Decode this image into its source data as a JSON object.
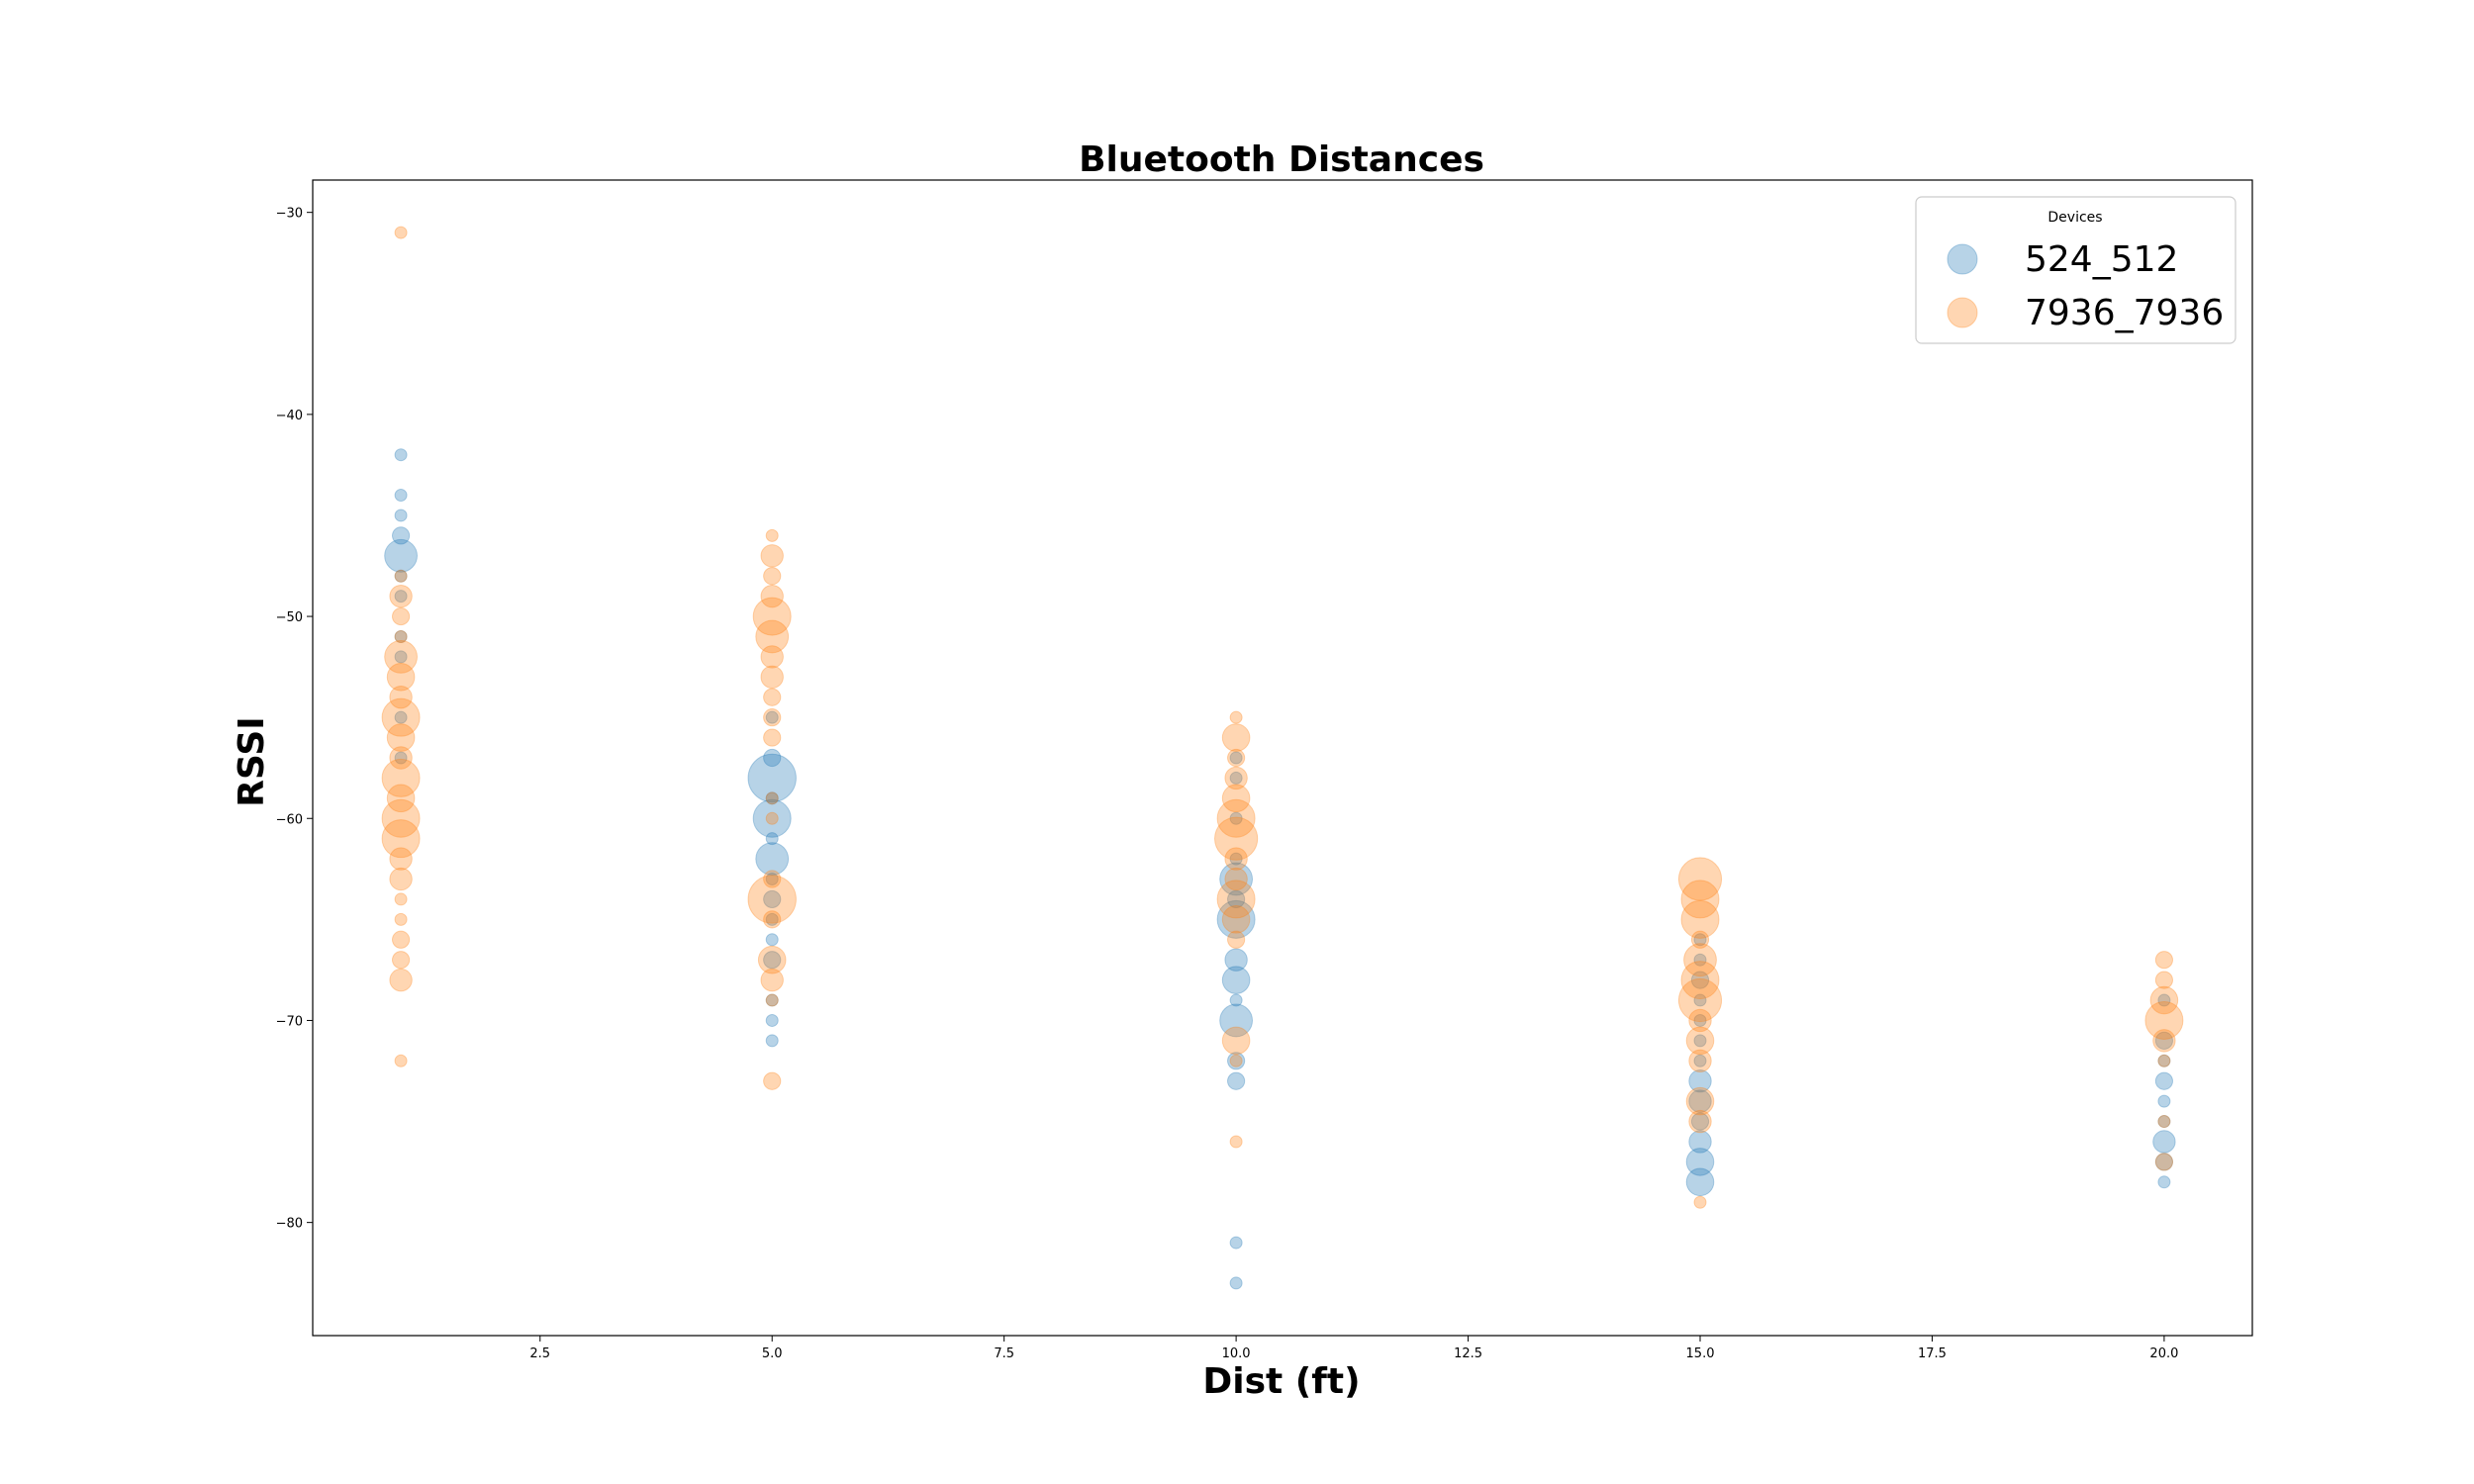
{
  "chart_data": {
    "type": "scatter",
    "title": "Bluetooth Distances",
    "xlabel": "Dist (ft)",
    "ylabel": "RSSI",
    "xlim": [
      0.05,
      20.95
    ],
    "ylim": [
      -85.6,
      -28.4
    ],
    "xticks": [
      2.5,
      5.0,
      7.5,
      10.0,
      12.5,
      15.0,
      17.5,
      20.0
    ],
    "xtick_labels": [
      "2.5",
      "5.0",
      "7.5",
      "10.0",
      "12.5",
      "15.0",
      "17.5",
      "20.0"
    ],
    "yticks": [
      -30,
      -40,
      -50,
      -60,
      -70,
      -80
    ],
    "ytick_labels": [
      "−30",
      "−40",
      "−50",
      "−60",
      "−70",
      "−80"
    ],
    "grid": false,
    "legend": {
      "title": "Devices",
      "placement": "top-right"
    },
    "series": [
      {
        "name": "524_512",
        "color": "#1f77b4",
        "points": [
          {
            "x": 1,
            "y": -42,
            "s": 1
          },
          {
            "x": 1,
            "y": -44,
            "s": 1
          },
          {
            "x": 1,
            "y": -45,
            "s": 1
          },
          {
            "x": 1,
            "y": -46,
            "s": 2
          },
          {
            "x": 1,
            "y": -47,
            "s": 5
          },
          {
            "x": 1,
            "y": -48,
            "s": 1
          },
          {
            "x": 1,
            "y": -49,
            "s": 1
          },
          {
            "x": 1,
            "y": -51,
            "s": 1
          },
          {
            "x": 1,
            "y": -52,
            "s": 1
          },
          {
            "x": 1,
            "y": -55,
            "s": 1
          },
          {
            "x": 1,
            "y": -57,
            "s": 1
          },
          {
            "x": 5,
            "y": -55,
            "s": 1
          },
          {
            "x": 5,
            "y": -57,
            "s": 2
          },
          {
            "x": 5,
            "y": -58,
            "s": 8
          },
          {
            "x": 5,
            "y": -59,
            "s": 1
          },
          {
            "x": 5,
            "y": -60,
            "s": 6
          },
          {
            "x": 5,
            "y": -61,
            "s": 1
          },
          {
            "x": 5,
            "y": -62,
            "s": 5
          },
          {
            "x": 5,
            "y": -63,
            "s": 1
          },
          {
            "x": 5,
            "y": -64,
            "s": 2
          },
          {
            "x": 5,
            "y": -65,
            "s": 1
          },
          {
            "x": 5,
            "y": -66,
            "s": 1
          },
          {
            "x": 5,
            "y": -67,
            "s": 2
          },
          {
            "x": 5,
            "y": -69,
            "s": 1
          },
          {
            "x": 5,
            "y": -70,
            "s": 1
          },
          {
            "x": 5,
            "y": -71,
            "s": 1
          },
          {
            "x": 10,
            "y": -57,
            "s": 1
          },
          {
            "x": 10,
            "y": -58,
            "s": 1
          },
          {
            "x": 10,
            "y": -60,
            "s": 1
          },
          {
            "x": 10,
            "y": -62,
            "s": 1
          },
          {
            "x": 10,
            "y": -63,
            "s": 5
          },
          {
            "x": 10,
            "y": -64,
            "s": 2
          },
          {
            "x": 10,
            "y": -65,
            "s": 6
          },
          {
            "x": 10,
            "y": -67,
            "s": 3
          },
          {
            "x": 10,
            "y": -68,
            "s": 4
          },
          {
            "x": 10,
            "y": -69,
            "s": 1
          },
          {
            "x": 10,
            "y": -70,
            "s": 5
          },
          {
            "x": 10,
            "y": -72,
            "s": 2
          },
          {
            "x": 10,
            "y": -73,
            "s": 2
          },
          {
            "x": 10,
            "y": -81,
            "s": 1
          },
          {
            "x": 10,
            "y": -83,
            "s": 1
          },
          {
            "x": 15,
            "y": -66,
            "s": 1
          },
          {
            "x": 15,
            "y": -67,
            "s": 1
          },
          {
            "x": 15,
            "y": -68,
            "s": 2
          },
          {
            "x": 15,
            "y": -69,
            "s": 1
          },
          {
            "x": 15,
            "y": -70,
            "s": 1
          },
          {
            "x": 15,
            "y": -71,
            "s": 1
          },
          {
            "x": 15,
            "y": -72,
            "s": 1
          },
          {
            "x": 15,
            "y": -73,
            "s": 3
          },
          {
            "x": 15,
            "y": -74,
            "s": 3
          },
          {
            "x": 15,
            "y": -75,
            "s": 2
          },
          {
            "x": 15,
            "y": -76,
            "s": 3
          },
          {
            "x": 15,
            "y": -77,
            "s": 4
          },
          {
            "x": 15,
            "y": -78,
            "s": 4
          },
          {
            "x": 20,
            "y": -69,
            "s": 1
          },
          {
            "x": 20,
            "y": -71,
            "s": 2
          },
          {
            "x": 20,
            "y": -72,
            "s": 1
          },
          {
            "x": 20,
            "y": -73,
            "s": 2
          },
          {
            "x": 20,
            "y": -74,
            "s": 1
          },
          {
            "x": 20,
            "y": -75,
            "s": 1
          },
          {
            "x": 20,
            "y": -76,
            "s": 3
          },
          {
            "x": 20,
            "y": -77,
            "s": 2
          },
          {
            "x": 20,
            "y": -78,
            "s": 1
          }
        ]
      },
      {
        "name": "7936_7936",
        "color": "#ff7f0e",
        "points": [
          {
            "x": 1,
            "y": -31,
            "s": 1
          },
          {
            "x": 1,
            "y": -48,
            "s": 1
          },
          {
            "x": 1,
            "y": -49,
            "s": 3
          },
          {
            "x": 1,
            "y": -50,
            "s": 2
          },
          {
            "x": 1,
            "y": -51,
            "s": 1
          },
          {
            "x": 1,
            "y": -52,
            "s": 5
          },
          {
            "x": 1,
            "y": -53,
            "s": 4
          },
          {
            "x": 1,
            "y": -54,
            "s": 3
          },
          {
            "x": 1,
            "y": -55,
            "s": 6
          },
          {
            "x": 1,
            "y": -56,
            "s": 4
          },
          {
            "x": 1,
            "y": -57,
            "s": 3
          },
          {
            "x": 1,
            "y": -58,
            "s": 6
          },
          {
            "x": 1,
            "y": -59,
            "s": 4
          },
          {
            "x": 1,
            "y": -60,
            "s": 6
          },
          {
            "x": 1,
            "y": -61,
            "s": 6
          },
          {
            "x": 1,
            "y": -62,
            "s": 3
          },
          {
            "x": 1,
            "y": -63,
            "s": 3
          },
          {
            "x": 1,
            "y": -64,
            "s": 1
          },
          {
            "x": 1,
            "y": -65,
            "s": 1
          },
          {
            "x": 1,
            "y": -66,
            "s": 2
          },
          {
            "x": 1,
            "y": -67,
            "s": 2
          },
          {
            "x": 1,
            "y": -68,
            "s": 3
          },
          {
            "x": 1,
            "y": -72,
            "s": 1
          },
          {
            "x": 5,
            "y": -46,
            "s": 1
          },
          {
            "x": 5,
            "y": -47,
            "s": 3
          },
          {
            "x": 5,
            "y": -48,
            "s": 2
          },
          {
            "x": 5,
            "y": -49,
            "s": 3
          },
          {
            "x": 5,
            "y": -50,
            "s": 6
          },
          {
            "x": 5,
            "y": -51,
            "s": 5
          },
          {
            "x": 5,
            "y": -52,
            "s": 3
          },
          {
            "x": 5,
            "y": -53,
            "s": 3
          },
          {
            "x": 5,
            "y": -54,
            "s": 2
          },
          {
            "x": 5,
            "y": -55,
            "s": 2
          },
          {
            "x": 5,
            "y": -56,
            "s": 2
          },
          {
            "x": 5,
            "y": -59,
            "s": 1
          },
          {
            "x": 5,
            "y": -60,
            "s": 1
          },
          {
            "x": 5,
            "y": -63,
            "s": 2
          },
          {
            "x": 5,
            "y": -64,
            "s": 8
          },
          {
            "x": 5,
            "y": -65,
            "s": 2
          },
          {
            "x": 5,
            "y": -67,
            "s": 4
          },
          {
            "x": 5,
            "y": -68,
            "s": 3
          },
          {
            "x": 5,
            "y": -69,
            "s": 1
          },
          {
            "x": 5,
            "y": -73,
            "s": 2
          },
          {
            "x": 10,
            "y": -55,
            "s": 1
          },
          {
            "x": 10,
            "y": -56,
            "s": 4
          },
          {
            "x": 10,
            "y": -57,
            "s": 2
          },
          {
            "x": 10,
            "y": -58,
            "s": 3
          },
          {
            "x": 10,
            "y": -59,
            "s": 4
          },
          {
            "x": 10,
            "y": -60,
            "s": 6
          },
          {
            "x": 10,
            "y": -61,
            "s": 7
          },
          {
            "x": 10,
            "y": -62,
            "s": 3
          },
          {
            "x": 10,
            "y": -63,
            "s": 3
          },
          {
            "x": 10,
            "y": -64,
            "s": 6
          },
          {
            "x": 10,
            "y": -65,
            "s": 4
          },
          {
            "x": 10,
            "y": -66,
            "s": 2
          },
          {
            "x": 10,
            "y": -71,
            "s": 4
          },
          {
            "x": 10,
            "y": -72,
            "s": 1
          },
          {
            "x": 10,
            "y": -76,
            "s": 1
          },
          {
            "x": 15,
            "y": -63,
            "s": 7
          },
          {
            "x": 15,
            "y": -64,
            "s": 6
          },
          {
            "x": 15,
            "y": -65,
            "s": 6
          },
          {
            "x": 15,
            "y": -66,
            "s": 2
          },
          {
            "x": 15,
            "y": -67,
            "s": 5
          },
          {
            "x": 15,
            "y": -68,
            "s": 6
          },
          {
            "x": 15,
            "y": -69,
            "s": 7
          },
          {
            "x": 15,
            "y": -70,
            "s": 3
          },
          {
            "x": 15,
            "y": -71,
            "s": 4
          },
          {
            "x": 15,
            "y": -72,
            "s": 3
          },
          {
            "x": 15,
            "y": -74,
            "s": 4
          },
          {
            "x": 15,
            "y": -75,
            "s": 3
          },
          {
            "x": 15,
            "y": -79,
            "s": 1
          },
          {
            "x": 20,
            "y": -67,
            "s": 2
          },
          {
            "x": 20,
            "y": -68,
            "s": 2
          },
          {
            "x": 20,
            "y": -69,
            "s": 4
          },
          {
            "x": 20,
            "y": -70,
            "s": 6
          },
          {
            "x": 20,
            "y": -71,
            "s": 3
          },
          {
            "x": 20,
            "y": -72,
            "s": 1
          },
          {
            "x": 20,
            "y": -75,
            "s": 1
          },
          {
            "x": 20,
            "y": -77,
            "s": 2
          }
        ]
      }
    ]
  }
}
